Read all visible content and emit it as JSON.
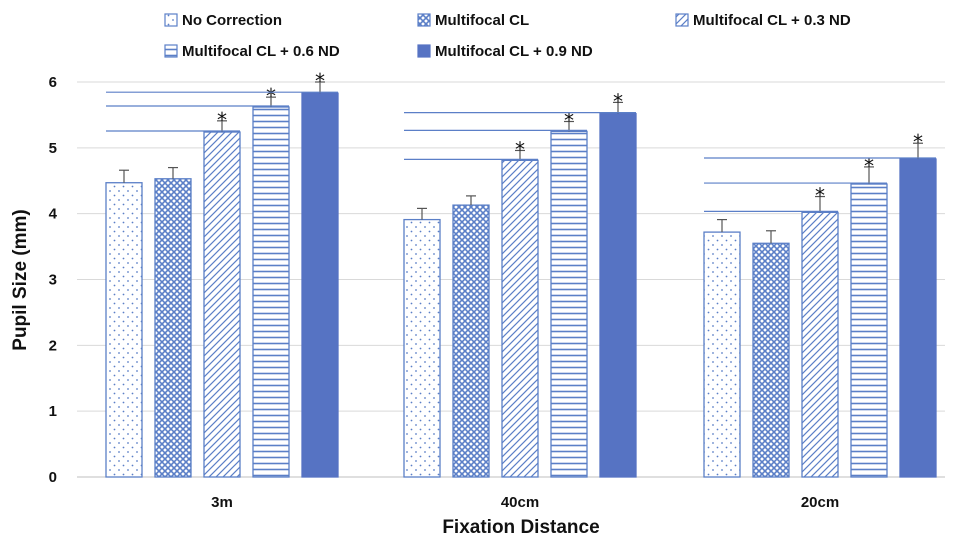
{
  "chart_data": {
    "type": "bar",
    "categories": [
      "3m",
      "40cm",
      "20cm"
    ],
    "series": [
      {
        "name": "No Correction",
        "pattern": "dots",
        "values": [
          4.47,
          3.91,
          3.72
        ],
        "errors": [
          0.19,
          0.17,
          0.19
        ]
      },
      {
        "name": "Multifocal CL",
        "pattern": "crosshatch",
        "values": [
          4.53,
          4.13,
          3.55
        ],
        "errors": [
          0.17,
          0.14,
          0.19
        ]
      },
      {
        "name": "Multifocal CL + 0.3 ND",
        "pattern": "diagonal",
        "values": [
          5.24,
          4.81,
          4.02
        ],
        "errors": [
          0.17,
          0.15,
          0.24
        ]
      },
      {
        "name": "Multifocal CL + 0.6 ND",
        "pattern": "horizontal",
        "values": [
          5.62,
          5.25,
          4.45
        ],
        "errors": [
          0.15,
          0.15,
          0.26
        ]
      },
      {
        "name": "Multifocal CL + 0.9 ND",
        "pattern": "solid",
        "values": [
          5.83,
          5.52,
          4.83
        ],
        "errors": [
          0.17,
          0.17,
          0.24
        ]
      }
    ],
    "significance_marker": "*",
    "significant": [
      [
        false,
        false,
        true,
        true,
        true
      ],
      [
        false,
        false,
        true,
        true,
        true
      ],
      [
        false,
        false,
        true,
        true,
        true
      ]
    ],
    "xlabel": "Fixation Distance",
    "ylabel": "Pupil Size (mm)",
    "ylim": [
      0,
      6
    ],
    "yticks": [
      "0",
      "1",
      "2",
      "3",
      "4",
      "5",
      "6"
    ],
    "grid": true,
    "legend_position": "top",
    "colors": {
      "accent": "#5b7fc7",
      "solid": "#5673c3",
      "grid": "#d9d9d9",
      "text": "#111111"
    }
  }
}
